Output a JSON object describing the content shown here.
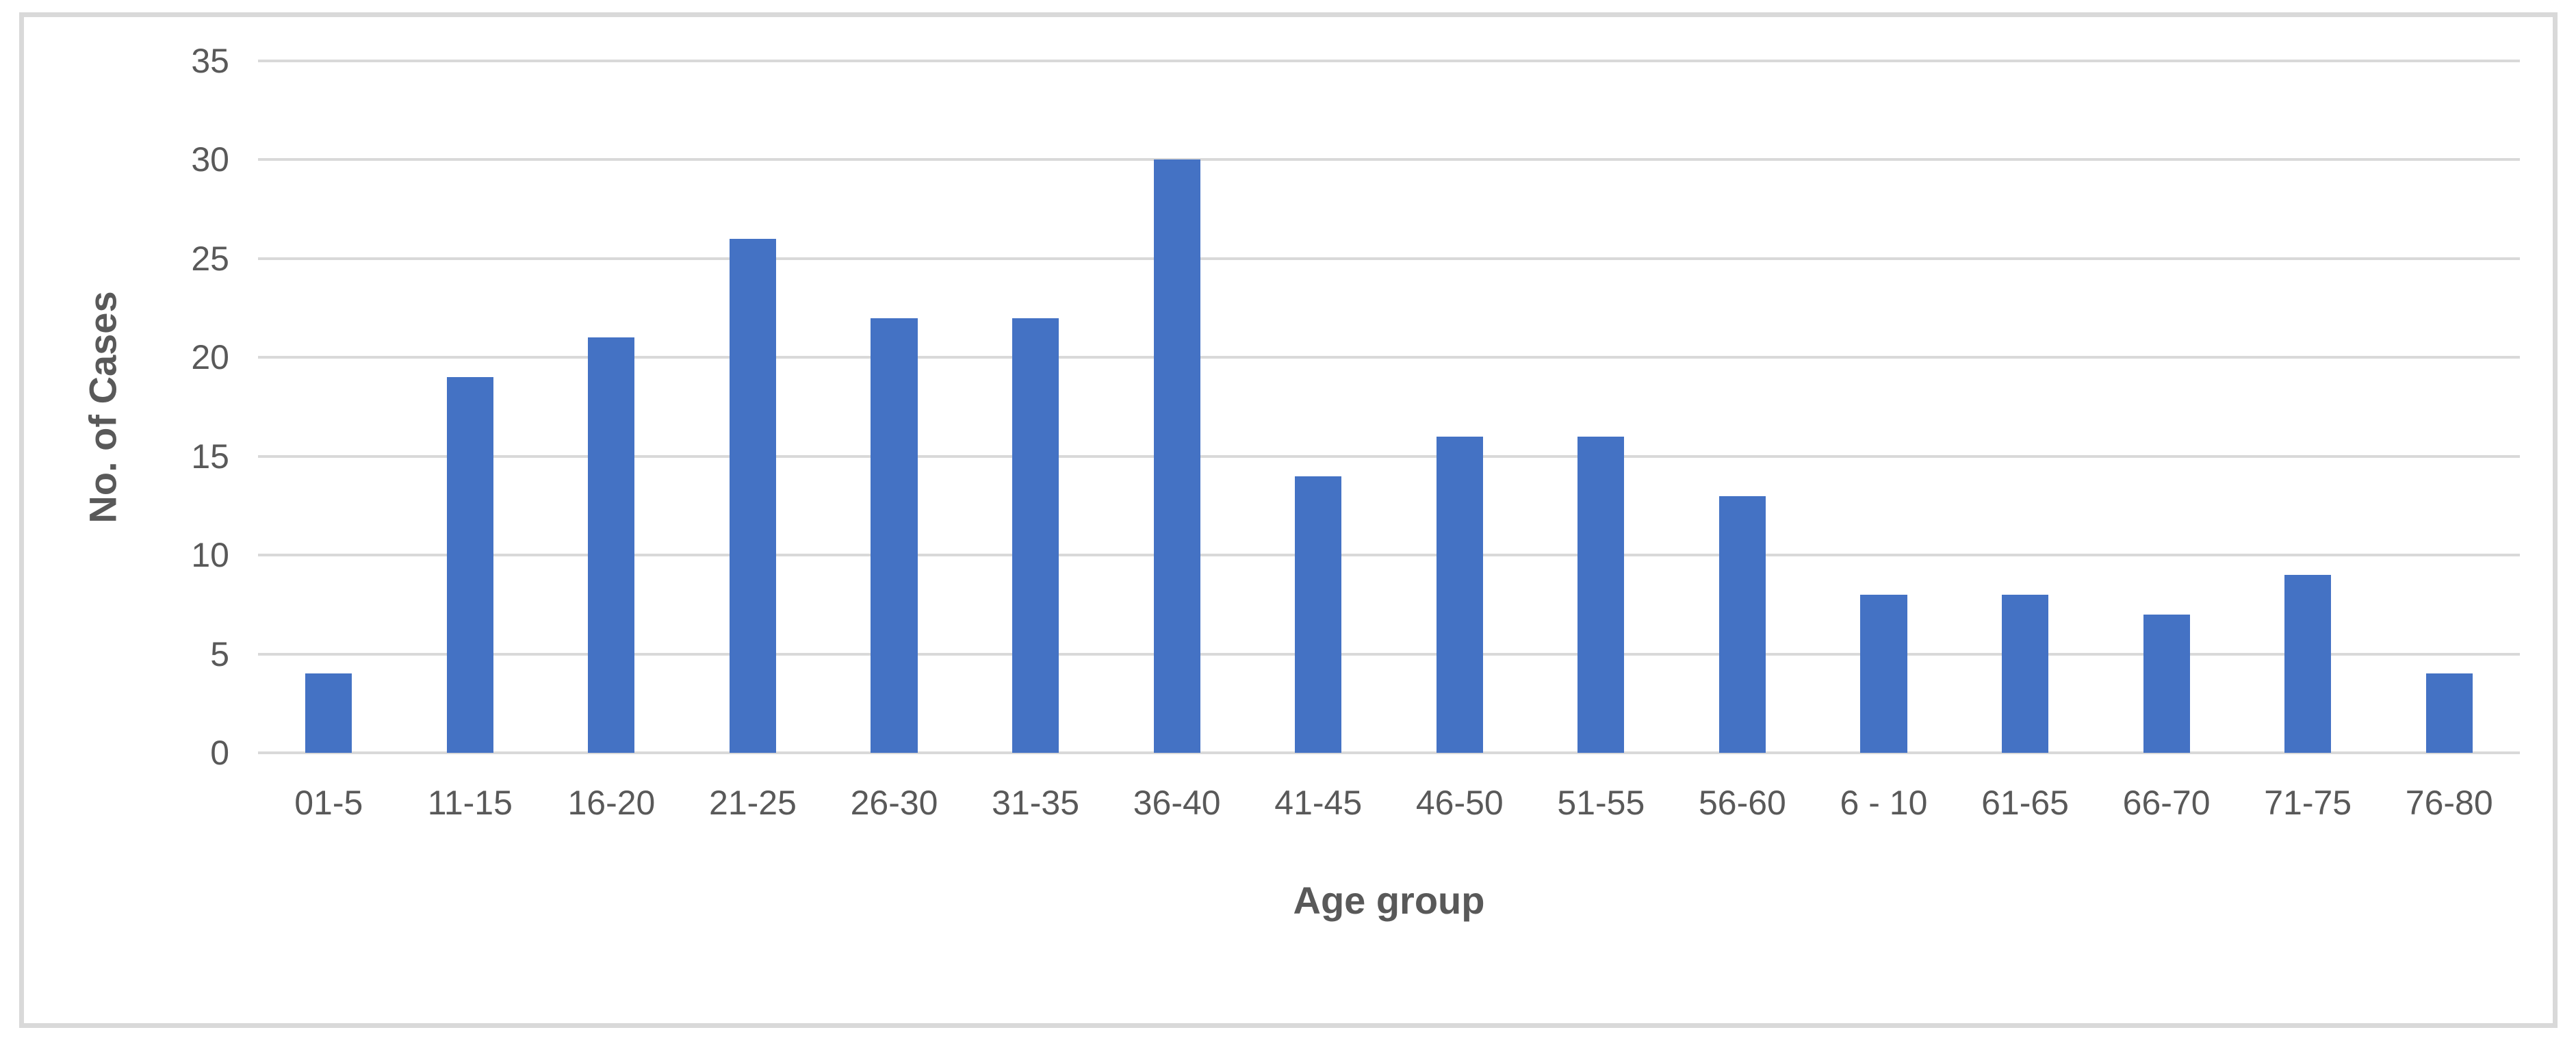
{
  "chart_data": {
    "type": "bar",
    "title": "",
    "categories": [
      "01-5",
      "11-15",
      "16-20",
      "21-25",
      "26-30",
      "31-35",
      "36-40",
      "41-45",
      "46-50",
      "51-55",
      "56-60",
      "6 - 10",
      "61-65",
      "66-70",
      "71-75",
      "76-80"
    ],
    "values": [
      4,
      19,
      21,
      26,
      22,
      22,
      30,
      14,
      16,
      16,
      13,
      8,
      8,
      7,
      9,
      4
    ],
    "xlabel": "Age group",
    "ylabel": "No. of Cases",
    "ylim": [
      0,
      35
    ],
    "yticks": [
      0,
      5,
      10,
      15,
      20,
      25,
      30,
      35
    ],
    "grid": "horizontal",
    "legend_position": "none",
    "colors": {
      "bar": "#4472C4",
      "gridline": "#D9D9D9",
      "axis_text": "#595959",
      "frame_border": "#D9D9D9",
      "background": "#FFFFFF"
    }
  }
}
